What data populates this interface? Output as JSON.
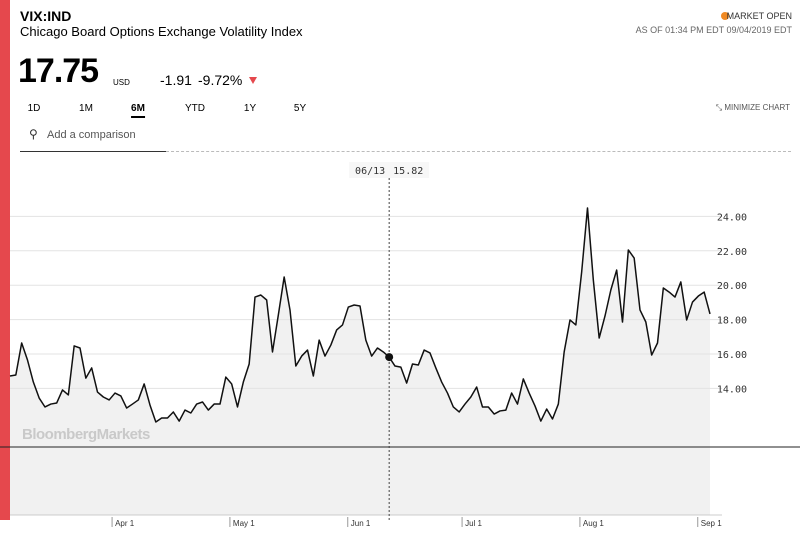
{
  "header": {
    "symbol": "VIX:IND",
    "name": "Chicago Board Options Exchange Volatility Index",
    "price": "17.75",
    "currency": "USD",
    "change": "-1.91",
    "change_pct": "-9.72%",
    "status": "MARKET OPEN",
    "as_of": "AS OF 01:34 PM EDT 09/04/2019 EDT"
  },
  "ranges": [
    "1D",
    "1M",
    "6M",
    "YTD",
    "1Y",
    "5Y"
  ],
  "selected_range": "6M",
  "minimize": "MINIMIZE CHART",
  "search_placeholder": "Add a comparison",
  "watermark": "BloombergMarkets",
  "chart_data": {
    "type": "line",
    "color": "#111111",
    "values": [
      14.72,
      14.78,
      16.64,
      15.65,
      14.37,
      13.44,
      12.92,
      13.09,
      13.15,
      13.91,
      13.62,
      16.47,
      16.35,
      14.6,
      15.19,
      13.79,
      13.5,
      13.33,
      13.73,
      13.56,
      12.86,
      13.09,
      13.33,
      14.26,
      13.03,
      12.05,
      12.28,
      12.28,
      12.63,
      12.1,
      12.74,
      12.57,
      13.09,
      13.21,
      12.74,
      13.09,
      13.09,
      14.66,
      14.26,
      12.92,
      14.37,
      15.42,
      19.31,
      19.43,
      19.14,
      16.12,
      18.27,
      20.48,
      18.56,
      15.3,
      15.88,
      16.23,
      14.72,
      16.81,
      15.88,
      16.52,
      17.4,
      17.69,
      18.73,
      18.85,
      18.79,
      16.81,
      15.88,
      16.35,
      16.12,
      15.82,
      15.3,
      15.24,
      14.31,
      15.42,
      15.36,
      16.23,
      16.06,
      15.19,
      14.37,
      13.73,
      12.92,
      12.63,
      13.09,
      13.5,
      14.08,
      12.92,
      12.92,
      12.51,
      12.69,
      12.74,
      13.73,
      13.09,
      14.55,
      13.73,
      12.98,
      12.1,
      12.8,
      12.22,
      13.09,
      16.12,
      17.98,
      17.69,
      20.77,
      24.49,
      20.3,
      16.93,
      18.21,
      19.72,
      20.88,
      17.86,
      22.05,
      21.58,
      18.56,
      17.86,
      15.94,
      16.64,
      19.84,
      19.6,
      19.31,
      20.19,
      17.98,
      19.02,
      19.37,
      19.6,
      18.33
    ],
    "xlim": [
      0,
      120
    ],
    "xticks": [
      {
        "value": 17.5,
        "label": "Apr 1"
      },
      {
        "value": 37.7,
        "label": "May 1"
      },
      {
        "value": 57.9,
        "label": "Jun 1"
      },
      {
        "value": 77.5,
        "label": "Jul 1"
      },
      {
        "value": 97.7,
        "label": "Aug 1"
      },
      {
        "value": 117.9,
        "label": "Sep 1"
      }
    ],
    "ylim": [
      6.64,
      27.57
    ],
    "yticks": [
      {
        "value": 14,
        "label": "14.00"
      },
      {
        "value": 16,
        "label": "16.00"
      },
      {
        "value": 18,
        "label": "18.00"
      },
      {
        "value": 20,
        "label": "20.00"
      },
      {
        "value": 22,
        "label": "22.00"
      },
      {
        "value": 24,
        "label": "24.00"
      }
    ],
    "grid": true,
    "crosshair": {
      "x": 65,
      "date": "06/13",
      "value": 15.82
    }
  }
}
